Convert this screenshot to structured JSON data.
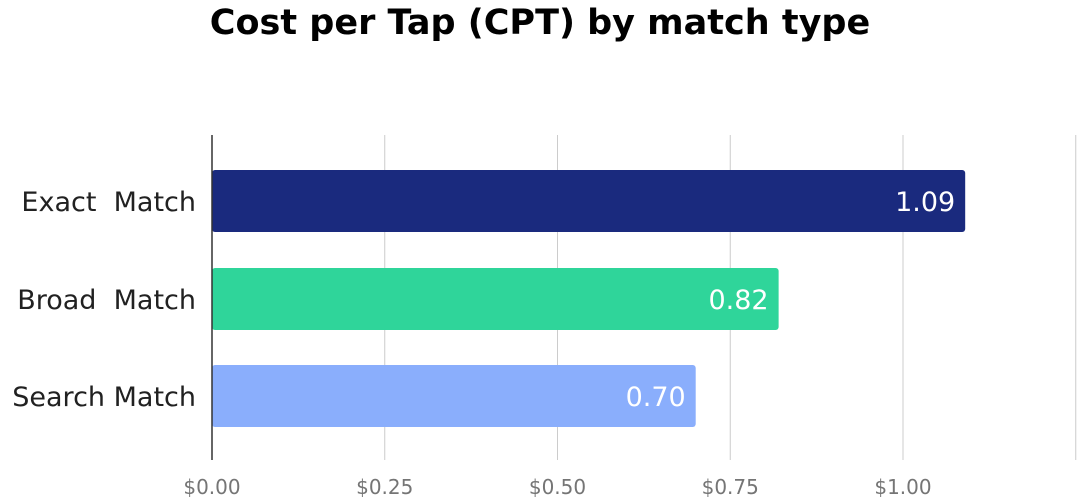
{
  "chart_data": {
    "type": "bar",
    "orientation": "horizontal",
    "title": "Cost per Tap (CPT) by match type",
    "categories": [
      "Exact  Match",
      "Broad  Match",
      "Search Match"
    ],
    "values": [
      1.09,
      0.82,
      0.7
    ],
    "data_labels": [
      "1.09",
      "0.82",
      "0.70"
    ],
    "colors": [
      "#1a2a7e",
      "#2fd59a",
      "#8aaefc"
    ],
    "xlim": [
      0,
      1.25
    ],
    "x_ticks": [
      0,
      0.25,
      0.5,
      0.75,
      1.0
    ],
    "x_tick_labels": [
      "$0.00",
      "$0.25",
      "$0.50",
      "$0.75",
      "$1.00"
    ],
    "grid": true,
    "legend": "none",
    "xlabel": "",
    "ylabel": ""
  }
}
